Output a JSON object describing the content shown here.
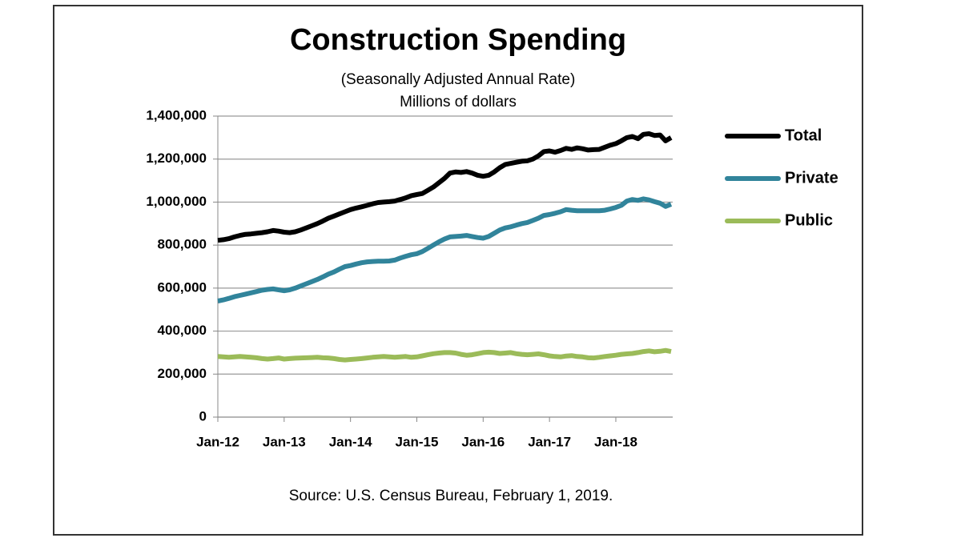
{
  "chart_data": {
    "type": "line",
    "title": "Construction Spending",
    "subtitle": "(Seasonally Adjusted Annual Rate)",
    "units_note": "Millions of dollars",
    "source": "Source: U.S. Census Bureau, February 1, 2019.",
    "categories": [
      "Jan-12",
      null,
      null,
      null,
      null,
      null,
      null,
      null,
      null,
      null,
      null,
      null,
      "Jan-13",
      null,
      null,
      null,
      null,
      null,
      null,
      null,
      null,
      null,
      null,
      null,
      "Jan-14",
      null,
      null,
      null,
      null,
      null,
      null,
      null,
      null,
      null,
      null,
      null,
      "Jan-15",
      null,
      null,
      null,
      null,
      null,
      null,
      null,
      null,
      null,
      null,
      null,
      "Jan-16",
      null,
      null,
      null,
      null,
      null,
      null,
      null,
      null,
      null,
      null,
      null,
      "Jan-17",
      null,
      null,
      null,
      null,
      null,
      null,
      null,
      null,
      null,
      null,
      null,
      "Jan-18",
      null,
      null,
      null,
      null,
      null,
      null,
      null,
      null,
      null,
      null
    ],
    "series": [
      {
        "name": "Total",
        "color": "#000000",
        "values": [
          822000,
          825000,
          830000,
          838000,
          845000,
          850000,
          852000,
          855000,
          858000,
          862000,
          868000,
          865000,
          860000,
          858000,
          862000,
          870000,
          880000,
          890000,
          900000,
          912000,
          925000,
          935000,
          945000,
          955000,
          965000,
          972000,
          978000,
          985000,
          992000,
          998000,
          1000000,
          1002000,
          1005000,
          1012000,
          1020000,
          1030000,
          1035000,
          1040000,
          1055000,
          1070000,
          1090000,
          1110000,
          1135000,
          1140000,
          1138000,
          1142000,
          1135000,
          1125000,
          1120000,
          1125000,
          1140000,
          1160000,
          1175000,
          1180000,
          1185000,
          1190000,
          1192000,
          1200000,
          1215000,
          1235000,
          1238000,
          1232000,
          1240000,
          1250000,
          1245000,
          1252000,
          1248000,
          1242000,
          1244000,
          1245000,
          1255000,
          1265000,
          1272000,
          1285000,
          1300000,
          1305000,
          1295000,
          1315000,
          1318000,
          1310000,
          1312000,
          1285000,
          1300000
        ]
      },
      {
        "name": "Private",
        "color": "#31849b",
        "values": [
          540000,
          545000,
          552000,
          560000,
          566000,
          572000,
          578000,
          584000,
          590000,
          594000,
          596000,
          592000,
          588000,
          592000,
          600000,
          610000,
          620000,
          630000,
          640000,
          652000,
          665000,
          675000,
          688000,
          700000,
          705000,
          712000,
          718000,
          722000,
          724000,
          725000,
          725000,
          726000,
          730000,
          740000,
          748000,
          755000,
          760000,
          770000,
          785000,
          800000,
          815000,
          828000,
          838000,
          840000,
          842000,
          845000,
          840000,
          835000,
          832000,
          840000,
          855000,
          870000,
          880000,
          885000,
          893000,
          900000,
          905000,
          915000,
          925000,
          938000,
          942000,
          948000,
          955000,
          965000,
          962000,
          960000,
          960000,
          960000,
          960000,
          960000,
          962000,
          968000,
          975000,
          985000,
          1005000,
          1012000,
          1008000,
          1015000,
          1010000,
          1002000,
          995000,
          980000,
          990000
        ]
      },
      {
        "name": "Public",
        "color": "#9bbb59",
        "values": [
          282000,
          280000,
          278000,
          280000,
          282000,
          280000,
          278000,
          276000,
          272000,
          270000,
          272000,
          275000,
          270000,
          272000,
          274000,
          275000,
          276000,
          277000,
          278000,
          276000,
          275000,
          272000,
          268000,
          266000,
          268000,
          270000,
          272000,
          275000,
          278000,
          280000,
          282000,
          280000,
          278000,
          280000,
          282000,
          278000,
          280000,
          285000,
          290000,
          295000,
          298000,
          300000,
          300000,
          298000,
          292000,
          288000,
          290000,
          295000,
          300000,
          302000,
          300000,
          296000,
          298000,
          300000,
          295000,
          292000,
          290000,
          292000,
          294000,
          290000,
          285000,
          282000,
          280000,
          284000,
          286000,
          282000,
          280000,
          276000,
          275000,
          278000,
          282000,
          285000,
          288000,
          292000,
          294000,
          296000,
          300000,
          305000,
          308000,
          304000,
          306000,
          310000,
          305000
        ]
      }
    ],
    "ylim": [
      0,
      1400000
    ],
    "yticks": [
      0,
      {
        "value": 200000,
        "label": "200,000"
      },
      {
        "value": 400000,
        "label": "400,000"
      },
      {
        "value": 600000,
        "label": "600,000"
      },
      {
        "value": 800000,
        "label": "800,000"
      },
      {
        "value": 1000000,
        "label": "1,000,000"
      },
      {
        "value": 1200000,
        "label": "1,200,000"
      },
      {
        "value": 1400000,
        "label": "1,400,000"
      }
    ],
    "grid": true,
    "legend": "right"
  }
}
